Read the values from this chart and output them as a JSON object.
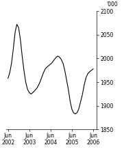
{
  "ylabel": "'000",
  "ylim": [
    1850,
    2100
  ],
  "yticks": [
    1850,
    1900,
    1950,
    2000,
    2050,
    2100
  ],
  "xtick_labels": [
    "Jun\n2002",
    "Jun\n2003",
    "Jun\n2004",
    "Jun\n2005",
    "Jun\n2006"
  ],
  "xtick_positions": [
    0,
    12,
    24,
    36,
    48
  ],
  "line_color": "#000000",
  "background_color": "#ffffff",
  "xlim": [
    -1,
    50
  ],
  "line_data_x": [
    0,
    1,
    2,
    3,
    4,
    5,
    6,
    7,
    8,
    9,
    10,
    11,
    12,
    13,
    14,
    15,
    16,
    17,
    18,
    19,
    20,
    21,
    22,
    23,
    24,
    25,
    26,
    27,
    28,
    29,
    30,
    31,
    32,
    33,
    34,
    35,
    36,
    37,
    38,
    39,
    40,
    41,
    42,
    43,
    44,
    45,
    46,
    47,
    48
  ],
  "line_data_y": [
    1958,
    1970,
    1990,
    2020,
    2055,
    2072,
    2065,
    2040,
    2005,
    1975,
    1950,
    1935,
    1928,
    1925,
    1928,
    1932,
    1936,
    1942,
    1950,
    1960,
    1970,
    1978,
    1982,
    1985,
    1988,
    1992,
    1997,
    2002,
    2005,
    2003,
    1998,
    1990,
    1975,
    1955,
    1935,
    1910,
    1893,
    1885,
    1883,
    1886,
    1895,
    1910,
    1925,
    1945,
    1960,
    1968,
    1972,
    1975,
    1978
  ]
}
